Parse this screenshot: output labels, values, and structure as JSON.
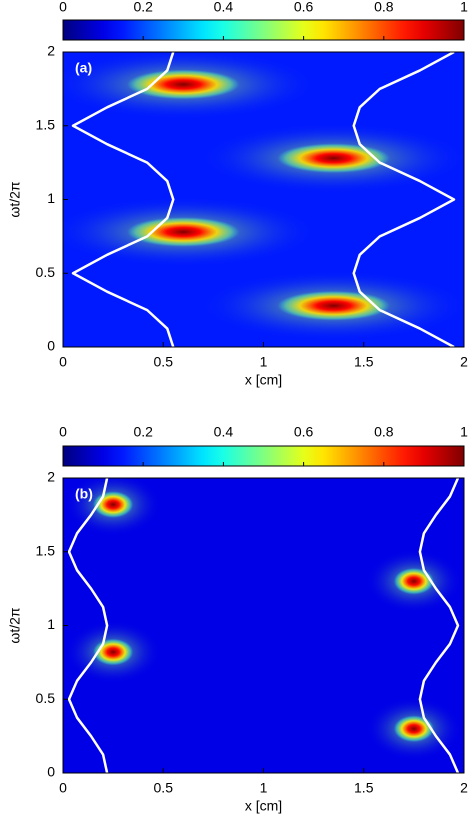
{
  "chart_data": [
    {
      "type": "heatmap",
      "label": "(a)",
      "xlabel": "x [cm]",
      "ylabel": "ωt/2π",
      "xlim": [
        0,
        2
      ],
      "ylim": [
        0,
        2
      ],
      "xticks": [
        0,
        0.5,
        1,
        1.5,
        2
      ],
      "yticks": [
        0,
        0.5,
        1,
        1.5,
        2
      ],
      "clim": [
        0,
        1
      ],
      "cticks": [
        0,
        0.2,
        0.4,
        0.6,
        0.8,
        1
      ],
      "background": 0.15,
      "peaks": [
        {
          "x": 0.6,
          "y": 1.78,
          "value": 1,
          "sx": 0.28,
          "sy": 0.1
        },
        {
          "x": 1.35,
          "y": 1.28,
          "value": 1,
          "sx": 0.28,
          "sy": 0.1
        },
        {
          "x": 0.6,
          "y": 0.78,
          "value": 1,
          "sx": 0.28,
          "sy": 0.1
        },
        {
          "x": 1.35,
          "y": 0.28,
          "value": 1,
          "sx": 0.28,
          "sy": 0.1
        }
      ],
      "curves": [
        {
          "color": "#ffffff",
          "x": [
            0.55,
            0.52,
            0.42,
            0.22,
            0.05,
            0.22,
            0.42,
            0.52,
            0.55,
            0.52,
            0.42,
            0.22,
            0.05,
            0.22,
            0.42,
            0.52,
            0.55
          ],
          "y": [
            0,
            0.125,
            0.25,
            0.375,
            0.5,
            0.625,
            0.75,
            0.875,
            1,
            1.125,
            1.25,
            1.375,
            1.5,
            1.625,
            1.75,
            1.875,
            2
          ]
        },
        {
          "color": "#ffffff",
          "x": [
            1.95,
            1.78,
            1.58,
            1.48,
            1.45,
            1.48,
            1.58,
            1.78,
            1.95,
            1.78,
            1.58,
            1.48,
            1.45,
            1.48,
            1.58,
            1.78,
            1.95
          ],
          "y": [
            0,
            0.125,
            0.25,
            0.375,
            0.5,
            0.625,
            0.75,
            0.875,
            1,
            1.125,
            1.25,
            1.375,
            1.5,
            1.625,
            1.75,
            1.875,
            2
          ]
        }
      ]
    },
    {
      "type": "heatmap",
      "label": "(b)",
      "xlabel": "x [cm]",
      "ylabel": "ωt/2π",
      "xlim": [
        0,
        2
      ],
      "ylim": [
        0,
        2
      ],
      "xticks": [
        0,
        0.5,
        1,
        1.5,
        2
      ],
      "yticks": [
        0,
        0.5,
        1,
        1.5,
        2
      ],
      "clim": [
        0,
        1
      ],
      "cticks": [
        0,
        0.2,
        0.4,
        0.6,
        0.8,
        1
      ],
      "background": 0.1,
      "peaks": [
        {
          "x": 0.25,
          "y": 1.82,
          "value": 1,
          "sx": 0.1,
          "sy": 0.09
        },
        {
          "x": 1.75,
          "y": 1.3,
          "value": 1,
          "sx": 0.1,
          "sy": 0.09
        },
        {
          "x": 0.25,
          "y": 0.82,
          "value": 1,
          "sx": 0.1,
          "sy": 0.09
        },
        {
          "x": 1.75,
          "y": 0.3,
          "value": 1,
          "sx": 0.1,
          "sy": 0.09
        }
      ],
      "curves": [
        {
          "color": "#ffffff",
          "x": [
            0.22,
            0.2,
            0.14,
            0.07,
            0.03,
            0.07,
            0.14,
            0.2,
            0.22,
            0.2,
            0.14,
            0.07,
            0.03,
            0.07,
            0.14,
            0.2,
            0.22
          ],
          "y": [
            0,
            0.125,
            0.25,
            0.375,
            0.5,
            0.625,
            0.75,
            0.875,
            1,
            1.125,
            1.25,
            1.375,
            1.5,
            1.625,
            1.75,
            1.875,
            2
          ]
        },
        {
          "color": "#ffffff",
          "x": [
            1.97,
            1.93,
            1.86,
            1.8,
            1.78,
            1.8,
            1.86,
            1.93,
            1.97,
            1.93,
            1.86,
            1.8,
            1.78,
            1.8,
            1.86,
            1.93,
            1.97
          ],
          "y": [
            0,
            0.125,
            0.25,
            0.375,
            0.5,
            0.625,
            0.75,
            0.875,
            1,
            1.125,
            1.25,
            1.375,
            1.5,
            1.625,
            1.75,
            1.875,
            2
          ]
        }
      ]
    }
  ]
}
